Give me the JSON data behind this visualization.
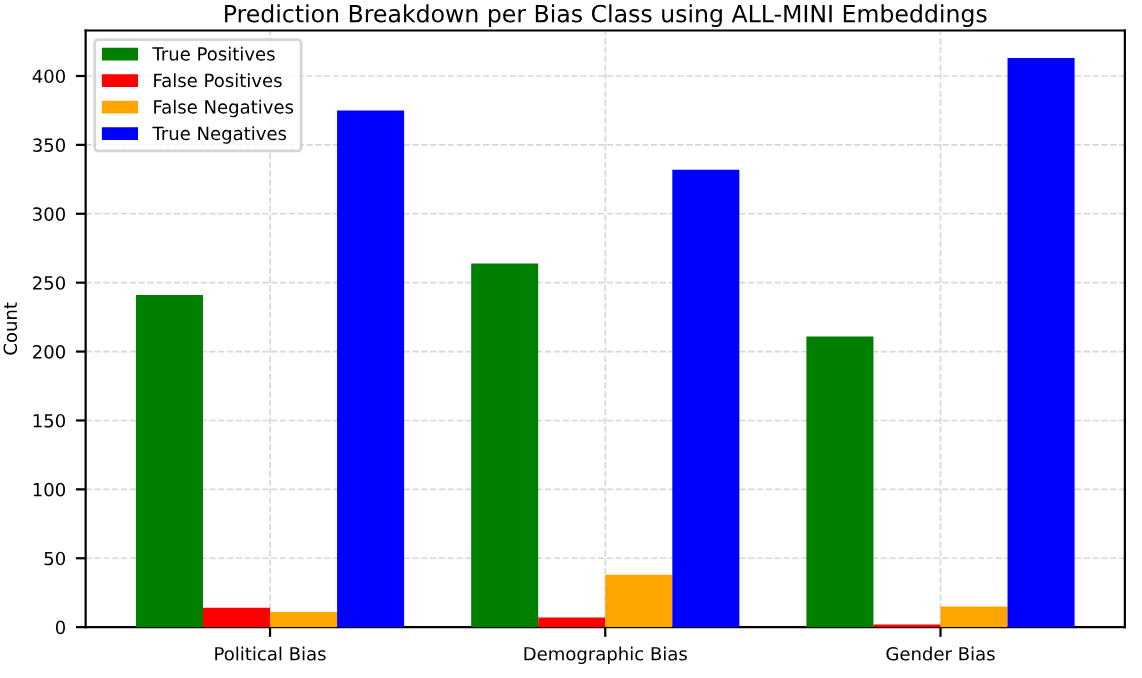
{
  "chart_data": {
    "type": "bar",
    "title": "Prediction Breakdown per Bias Class using ALL-MINI Embeddings",
    "ylabel": "Count",
    "categories": [
      "Political Bias",
      "Demographic Bias",
      "Gender Bias"
    ],
    "series": [
      {
        "name": "True Positives",
        "color": "#008000",
        "values": [
          241,
          264,
          211
        ]
      },
      {
        "name": "False Positives",
        "color": "#ff0000",
        "values": [
          14,
          7,
          2
        ]
      },
      {
        "name": "False Negatives",
        "color": "#ffa500",
        "values": [
          11,
          38,
          15
        ]
      },
      {
        "name": "True Negatives",
        "color": "#0000ff",
        "values": [
          375,
          332,
          413
        ]
      }
    ],
    "ylim": [
      0,
      433
    ],
    "yticks": [
      0,
      50,
      100,
      150,
      200,
      250,
      300,
      350,
      400
    ],
    "grid": true,
    "legend": "top left"
  }
}
